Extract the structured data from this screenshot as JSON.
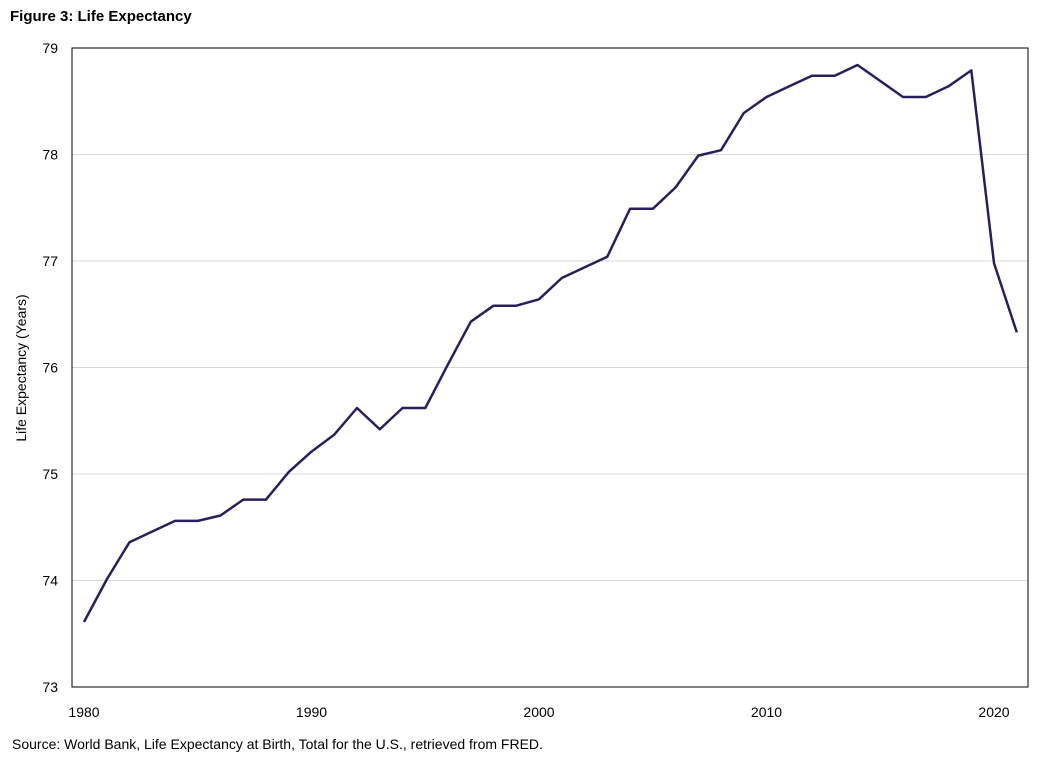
{
  "title": "Figure 3: Life Expectancy",
  "source": "Source: World Bank, Life Expectancy at Birth, Total for the U.S., retrieved from FRED.",
  "chart_data": {
    "type": "line",
    "title": "Figure 3: Life Expectancy",
    "xlabel": "",
    "ylabel": "Life Expectancy (Years)",
    "xlim": [
      1980,
      2021
    ],
    "ylim": [
      73,
      79
    ],
    "xticks": [
      1980,
      1990,
      2000,
      2010,
      2020
    ],
    "yticks": [
      73,
      74,
      75,
      76,
      77,
      78,
      79
    ],
    "grid": "horizontal",
    "line_color": "#2a1f5e",
    "series": [
      {
        "x": [
          1980,
          1981,
          1982,
          1983,
          1984,
          1985,
          1986,
          1987,
          1988,
          1989,
          1990,
          1991,
          1992,
          1993,
          1994,
          1995,
          1996,
          1997,
          1998,
          1999,
          2000,
          2001,
          2002,
          2003,
          2004,
          2005,
          2006,
          2007,
          2008,
          2009,
          2010,
          2011,
          2012,
          2013,
          2014,
          2015,
          2016,
          2017,
          2018,
          2019,
          2020,
          2021
        ],
        "values": [
          73.61,
          74.01,
          74.36,
          74.46,
          74.56,
          74.56,
          74.61,
          74.76,
          74.76,
          75.02,
          75.21,
          75.37,
          75.62,
          75.42,
          75.62,
          75.62,
          76.03,
          76.43,
          76.58,
          76.58,
          76.64,
          76.84,
          76.94,
          77.04,
          77.49,
          77.49,
          77.69,
          77.99,
          78.04,
          78.39,
          78.54,
          78.64,
          78.74,
          78.74,
          78.84,
          78.69,
          78.54,
          78.54,
          78.64,
          78.79,
          76.98,
          76.33
        ]
      }
    ]
  }
}
